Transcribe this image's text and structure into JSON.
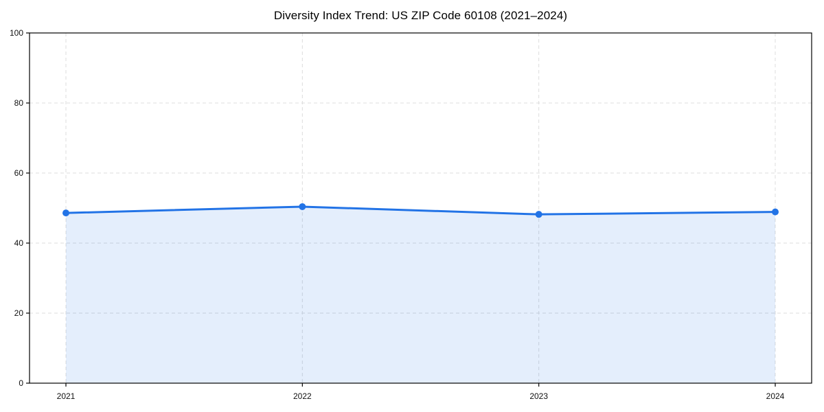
{
  "chart_data": {
    "type": "area",
    "title": "Diversity Index Trend: US ZIP Code 60108 (2021–2024)",
    "categories": [
      "2021",
      "2022",
      "2023",
      "2024"
    ],
    "series": [
      {
        "name": "Diversity Index",
        "values": [
          48.6,
          50.4,
          48.2,
          48.9
        ]
      }
    ],
    "xlabel": "",
    "ylabel": "",
    "ylim": [
      0,
      100
    ],
    "yticks": [
      0,
      20,
      40,
      60,
      80,
      100
    ],
    "grid": true,
    "grid_style": "dashed",
    "legend": "none",
    "colors": {
      "line": "#2273e6",
      "fill": "#2273e6",
      "fill_opacity": 0.12,
      "grid": "#dcdcdc",
      "axis": "#000000",
      "tick_text": "#111111",
      "background": "#ffffff"
    },
    "marker": "circle",
    "marker_radius": 5,
    "line_width": 3
  }
}
